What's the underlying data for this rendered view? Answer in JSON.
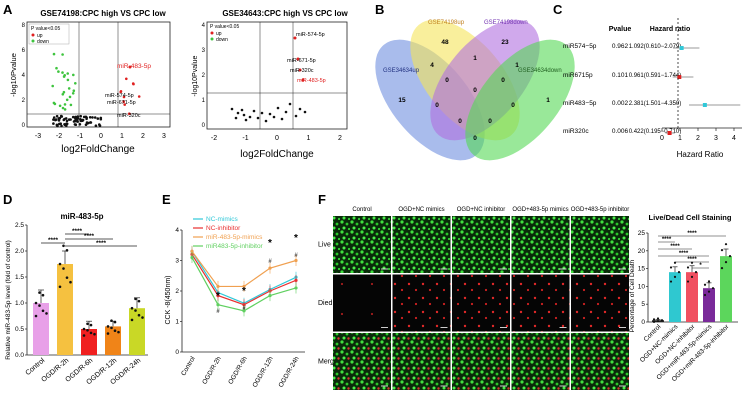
{
  "panel_letters": {
    "a": "A",
    "b": "B",
    "c": "C",
    "d": "D",
    "e": "E",
    "f": "F"
  },
  "panel_a1": {
    "title": "GSE74198:CPC high VS CPC low",
    "legend_title": "P value<0.05",
    "legend_up": "up",
    "legend_down": "down",
    "ylabel": "-log10Pvalue",
    "xlabel": "log2FoldChange",
    "xticks": [
      "-3",
      "-2",
      "-1",
      "0",
      "1",
      "2",
      "3"
    ],
    "yticks": [
      "0",
      "2",
      "4",
      "6",
      "8"
    ],
    "labels": [
      "miR-483-5p",
      "miR-574-5p",
      "miR-671-5p",
      "miR-320c"
    ],
    "colors": {
      "up": "#e02020",
      "down": "#3ec43e",
      "ns": "#111111"
    }
  },
  "panel_a2": {
    "title": "GSE34643:CPC high VS CPC low",
    "legend_title": "P value<0.05",
    "legend_up": "up",
    "legend_down": "down",
    "ylabel": "-log10Pvalue",
    "xlabel": "log2FoldChange",
    "xticks": [
      "-2",
      "-1",
      "0",
      "1",
      "2"
    ],
    "yticks": [
      "0",
      "1",
      "2",
      "3",
      "4"
    ],
    "labels": [
      "miR-574-5p",
      "miR-671-5p",
      "miR-320c",
      "miR-483-5p"
    ]
  },
  "panel_b": {
    "set_labels": [
      "GSE74198up",
      "GSE74198down",
      "GSE34634up",
      "GSE34634down"
    ],
    "counts": [
      "48",
      "23",
      "15",
      "1",
      "4",
      "1",
      "1",
      "0",
      "0",
      "0",
      "0",
      "0",
      "0",
      "0",
      "0"
    ],
    "colors": [
      "#f5e45a",
      "#b070e0",
      "#6f8fdf",
      "#55d855"
    ]
  },
  "panel_c": {
    "col_pvalue": "Pvalue",
    "col_hr": "Hazard ratio",
    "rows": [
      {
        "name": "miR574−5p",
        "p": "0.962",
        "hr": "1.092(0.610−2.079)"
      },
      {
        "name": "miR6715p",
        "p": "0.101",
        "hr": "0.961(0.591−1.744)"
      },
      {
        "name": "miR483−5p",
        "p": "0.002",
        "hr": "2.381(1.501−4.350)"
      },
      {
        "name": "miR320c",
        "p": "0.006",
        "hr": "0.422(0.195−0.710)"
      }
    ],
    "xticks": [
      "0",
      "1",
      "2",
      "3",
      "4"
    ],
    "xlabel": "Hazard Ratio"
  },
  "chart_data": [
    {
      "type": "bar",
      "title": "miR-483-5p",
      "ylabel": "Relative miR-483-5p level (fold of control)",
      "categories": [
        "Control",
        "OGD/R-2h",
        "OGD/R-6h",
        "OGD/R-12h",
        "OGD/R-24h"
      ],
      "values": [
        1.0,
        1.75,
        0.5,
        0.55,
        0.9
      ],
      "errors": [
        0.25,
        0.25,
        0.15,
        0.1,
        0.2
      ],
      "colors": [
        "#e8a0e8",
        "#f5c140",
        "#f02020",
        "#f08418",
        "#c9d826"
      ],
      "ylim": [
        0,
        2.5
      ],
      "yticks": [
        "0.0",
        "0.5",
        "1.0",
        "1.5",
        "2.0",
        "2.5"
      ],
      "significance": [
        "****",
        "****",
        "****",
        "****"
      ]
    },
    {
      "type": "line",
      "ylabel": "CCK -8(450nm)",
      "categories": [
        "Control",
        "OGD/R-2h",
        "OGD/R-6h",
        "OGD/R-12h",
        "OGD/R-24h"
      ],
      "ylim": [
        0,
        4
      ],
      "yticks": [
        "0",
        "1",
        "2",
        "3",
        "4"
      ],
      "series": [
        {
          "name": "NC-mimics",
          "color": "#30c8d8",
          "values": [
            3.3,
            1.95,
            1.6,
            2.05,
            2.45
          ]
        },
        {
          "name": "NC-inhibitor",
          "color": "#e83030",
          "values": [
            3.2,
            1.85,
            1.55,
            2.0,
            2.35
          ]
        },
        {
          "name": "miR-483-5p-mimics",
          "color": "#f0a050",
          "values": [
            3.3,
            2.15,
            2.15,
            2.75,
            3.0
          ]
        },
        {
          "name": "miR483-5p-inhibitor",
          "color": "#60d060",
          "values": [
            3.1,
            1.55,
            1.35,
            1.85,
            2.1
          ]
        }
      ],
      "annotations": [
        "*",
        "*",
        "*",
        "*",
        "#",
        "#",
        "#",
        "#"
      ]
    },
    {
      "type": "bar",
      "title": "Live/Dead Cell Staining",
      "ylabel": "Percentage of Cell Death",
      "categories": [
        "Control",
        "OGD+NC-mimics",
        "OGD+NC-inhibitor",
        "OGD+miR-483-5p-mimics",
        "OGD+miR-483-5p-inhibitor"
      ],
      "values": [
        0.5,
        14,
        14,
        9.5,
        18.5
      ],
      "errors": [
        0.2,
        1.5,
        1.8,
        1.5,
        2.0
      ],
      "colors": [
        "#222222",
        "#2fc8d0",
        "#f05060",
        "#7a2a9a",
        "#5cd65c"
      ],
      "ylim": [
        0,
        25
      ],
      "yticks": [
        "0",
        "5",
        "10",
        "15",
        "20",
        "25"
      ],
      "significance": [
        "****",
        "****",
        "****",
        "****",
        "****",
        "*"
      ]
    }
  ],
  "panel_f": {
    "col_labels": [
      "Control",
      "OGD+NC mimics",
      "OGD+NC inhibitor",
      "OGD+483-5p mimics",
      "OGD+483-5p inhibitor"
    ],
    "row_labels": [
      "Live",
      "Died",
      "Merge"
    ]
  }
}
